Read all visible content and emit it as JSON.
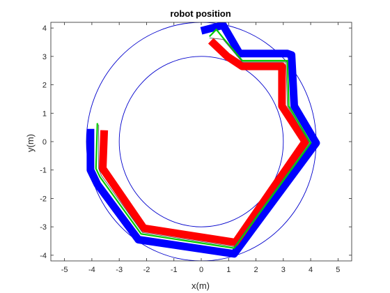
{
  "chart_data": {
    "type": "line",
    "title": "robot position",
    "xlabel": "x(m)",
    "ylabel": "y(m)",
    "xlim": [
      -5.5,
      5.5
    ],
    "ylim": [
      -4.2,
      4.2
    ],
    "xticks": [
      -5,
      -4,
      -3,
      -2,
      -1,
      0,
      1,
      2,
      3,
      4,
      5
    ],
    "yticks": [
      -4,
      -3,
      -2,
      -1,
      0,
      1,
      2,
      3,
      4
    ],
    "grid": false,
    "colors": {
      "axes": "#262626",
      "circle": "#0000cc",
      "blue": "#0000ff",
      "red": "#ff0000",
      "green": "#00cc00",
      "gray": "#555555"
    },
    "circles": [
      {
        "center": [
          0,
          0
        ],
        "radius": 3.0
      },
      {
        "center": [
          0,
          0
        ],
        "radius": 4.2
      }
    ],
    "series": [
      {
        "color": "blue",
        "style": "thick",
        "x": [
          -4.05,
          -4.05,
          -3.8,
          -2.3,
          1.2,
          4.2,
          3.4,
          3.3,
          3.15,
          1.4,
          0.8,
          0.0
        ],
        "y": [
          0.45,
          -1.0,
          -1.5,
          -3.45,
          -3.95,
          -0.05,
          1.25,
          3.05,
          3.1,
          3.1,
          4.1,
          3.9
        ]
      },
      {
        "color": "red",
        "style": "thick",
        "x": [
          -3.55,
          -3.6,
          -3.6,
          -2.1,
          1.25,
          3.8,
          2.95,
          2.95,
          1.5,
          0.95,
          0.35
        ],
        "y": [
          0.4,
          -0.9,
          -0.95,
          -3.05,
          -3.55,
          0.0,
          1.25,
          2.65,
          2.65,
          3.0,
          3.55
        ]
      },
      {
        "color": "green",
        "style": "thin",
        "x": [
          -3.8,
          -3.85,
          -3.7,
          -2.2,
          1.2,
          4.0,
          3.2,
          3.15,
          1.5,
          0.8,
          0.55,
          0.3
        ],
        "y": [
          0.65,
          -0.95,
          -1.25,
          -3.25,
          -3.75,
          -0.05,
          1.25,
          2.85,
          2.85,
          3.65,
          3.95,
          3.7
        ]
      },
      {
        "color": "gray",
        "style": "hairline",
        "x": [
          -3.75,
          -3.75,
          -3.65,
          -2.15,
          1.2,
          3.95,
          3.15,
          3.1,
          1.5,
          0.8,
          0.3
        ],
        "y": [
          0.6,
          -0.95,
          -1.2,
          -3.2,
          -3.7,
          -0.05,
          1.25,
          2.8,
          2.8,
          3.6,
          3.65
        ]
      }
    ]
  }
}
